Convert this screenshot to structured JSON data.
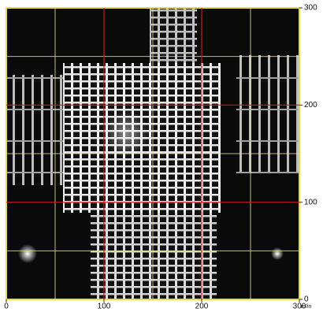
{
  "plot": {
    "xlim": [
      0,
      300
    ],
    "ylim": [
      0,
      300
    ],
    "xticks": [
      0,
      100,
      200,
      300
    ],
    "yticks": [
      0,
      100,
      200,
      300
    ],
    "minor_grid": [
      50,
      150,
      250
    ],
    "x_unit": "m/in"
  }
}
